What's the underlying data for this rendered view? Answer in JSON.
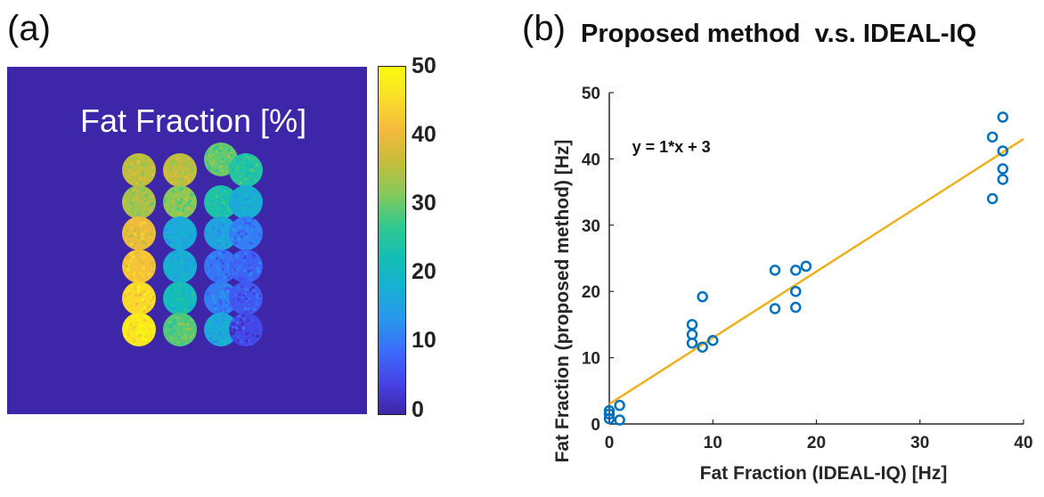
{
  "panel_a": {
    "label": "(a)",
    "image_title": "Fat Fraction [%]",
    "colorbar": {
      "ticks": [
        "50",
        "40",
        "30",
        "20",
        "10",
        "0"
      ],
      "range": [
        0,
        50
      ],
      "colors": [
        "#3e26a8",
        "#4743e6",
        "#3b6cfa",
        "#2897ec",
        "#17b0d2",
        "#14bfb3",
        "#34c98d",
        "#87c95a",
        "#c6bd3b",
        "#f4ba3d",
        "#f9dd2a",
        "#f9fb0e"
      ]
    },
    "vials": [
      [
        36,
        36,
        30,
        25
      ],
      [
        34,
        32,
        24,
        18
      ],
      [
        40,
        17,
        16,
        11
      ],
      [
        42,
        18,
        10,
        8
      ],
      [
        45,
        22,
        11,
        7
      ],
      [
        47,
        29,
        17,
        5
      ]
    ]
  },
  "panel_b": {
    "label": "(b)",
    "title": "Proposed method  v.s. IDEAL-IQ",
    "chart_data": {
      "type": "scatter",
      "title": "Proposed method  v.s. IDEAL-IQ",
      "xlabel": "Fat Fraction (IDEAL-IQ) [Hz]",
      "ylabel": "Fat Fraction (proposed method) [Hz]",
      "xlim": [
        0,
        40
      ],
      "ylim": [
        0,
        50
      ],
      "xticks": [
        0,
        10,
        20,
        30,
        40
      ],
      "yticks": [
        0,
        10,
        20,
        30,
        40,
        50
      ],
      "annotation": "y = 1*x + 3",
      "fit_line": {
        "slope": 1.0,
        "intercept": 3.0,
        "x_range": [
          0,
          40
        ],
        "color": "#edb120"
      },
      "marker_color": "#0072bd",
      "points": [
        [
          0,
          2.0
        ],
        [
          0,
          1.5
        ],
        [
          0,
          0.8
        ],
        [
          1,
          2.8
        ],
        [
          1,
          0.6
        ],
        [
          8,
          15.0
        ],
        [
          8,
          13.5
        ],
        [
          8,
          12.2
        ],
        [
          9,
          19.2
        ],
        [
          9,
          11.6
        ],
        [
          10,
          12.6
        ],
        [
          16,
          23.2
        ],
        [
          16,
          17.4
        ],
        [
          18,
          23.2
        ],
        [
          18,
          20.0
        ],
        [
          18,
          17.6
        ],
        [
          19,
          23.8
        ],
        [
          37,
          43.3
        ],
        [
          37,
          34.0
        ],
        [
          38,
          46.3
        ],
        [
          38,
          41.2
        ],
        [
          38,
          38.5
        ],
        [
          38,
          36.9
        ]
      ]
    }
  }
}
